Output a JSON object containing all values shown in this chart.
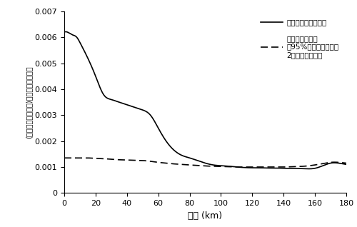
{
  "title": "",
  "xlabel": "距離 (km)",
  "ylabel": "(事業所間の距離の)起きやすさの程度",
  "xlim": [
    0,
    180
  ],
  "ylim": [
    0,
    0.007
  ],
  "yticks": [
    0,
    0.001,
    0.002,
    0.003,
    0.004,
    0.005,
    0.006,
    0.007
  ],
  "xticks": [
    0,
    20,
    40,
    60,
    80,
    100,
    120,
    140,
    160,
    180
  ],
  "legend1": "特許出願した事業所",
  "legend2": "すべての事業所\n（95%の確率の上下で\n2本引いてある）",
  "bg_color": "#ffffff",
  "line1_color": "#000000",
  "line2_color": "#000000",
  "solid_key": [
    0,
    2,
    5,
    8,
    10,
    15,
    20,
    25,
    30,
    35,
    40,
    45,
    50,
    55,
    60,
    65,
    70,
    75,
    80,
    85,
    90,
    95,
    100,
    105,
    110,
    115,
    120,
    125,
    130,
    135,
    140,
    145,
    150,
    155,
    160,
    165,
    170,
    175,
    180
  ],
  "solid_val": [
    0.0062,
    0.0062,
    0.0061,
    0.006,
    0.0058,
    0.0052,
    0.0045,
    0.0038,
    0.0036,
    0.0035,
    0.0034,
    0.0033,
    0.0032,
    0.003,
    0.0025,
    0.002,
    0.00165,
    0.00145,
    0.00135,
    0.00125,
    0.00115,
    0.00108,
    0.00105,
    0.00103,
    0.001,
    0.00098,
    0.00097,
    0.00097,
    0.00096,
    0.00096,
    0.00095,
    0.00095,
    0.00094,
    0.00093,
    0.00095,
    0.00105,
    0.00115,
    0.00115,
    0.0011
  ],
  "dashed_key": [
    0,
    2,
    5,
    8,
    10,
    15,
    20,
    25,
    30,
    35,
    40,
    45,
    50,
    55,
    60,
    65,
    70,
    75,
    80,
    85,
    90,
    95,
    100,
    105,
    110,
    115,
    120,
    125,
    130,
    135,
    140,
    145,
    150,
    155,
    160,
    165,
    170,
    175,
    180
  ],
  "dashed_val": [
    0.00135,
    0.00135,
    0.00135,
    0.00135,
    0.00135,
    0.00135,
    0.00133,
    0.00132,
    0.0013,
    0.00128,
    0.00127,
    0.00126,
    0.00125,
    0.00122,
    0.00118,
    0.00115,
    0.00112,
    0.0011,
    0.00108,
    0.00106,
    0.00104,
    0.00103,
    0.00102,
    0.00101,
    0.001,
    0.001,
    0.001,
    0.001,
    0.001,
    0.001,
    0.001,
    0.00101,
    0.00102,
    0.00104,
    0.00108,
    0.00113,
    0.00118,
    0.00118,
    0.00115
  ]
}
